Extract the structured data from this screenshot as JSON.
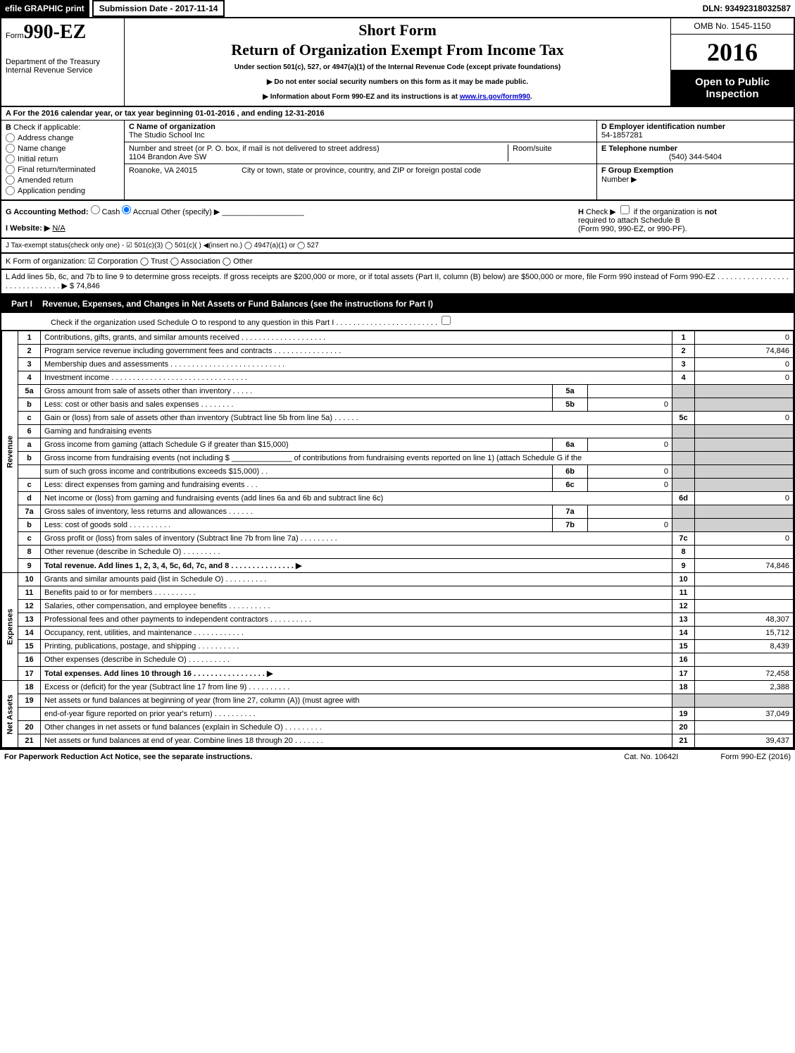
{
  "topbar": {
    "efile": "efile GRAPHIC print",
    "submission": "Submission Date - 2017-11-14",
    "dln": "DLN: 93492318032587"
  },
  "header": {
    "form_prefix": "Form",
    "form_number": "990-EZ",
    "dept1": "Department of the Treasury",
    "dept2": "Internal Revenue Service",
    "short_form": "Short Form",
    "title": "Return of Organization Exempt From Income Tax",
    "under_section": "Under section 501(c), 527, or 4947(a)(1) of the Internal Revenue Code (except private foundations)",
    "arrow1": "▶ Do not enter social security numbers on this form as it may be made public.",
    "arrow2_prefix": "▶ Information about Form 990-EZ and its instructions is at ",
    "arrow2_link": "www.irs.gov/form990",
    "arrow2_suffix": ".",
    "omb": "OMB No. 1545-1150",
    "year": "2016",
    "open_public_1": "Open to Public",
    "open_public_2": "Inspection"
  },
  "section_a": {
    "cal_year_prefix": "A  For the 2016 calendar year, or tax year beginning ",
    "begin_date": "01-01-2016",
    "mid": " , and ending ",
    "end_date": "12-31-2016",
    "b_label": "B",
    "check_if": "Check if applicable:",
    "checks": [
      "Address change",
      "Name change",
      "Initial return",
      "Final return/terminated",
      "Amended return",
      "Application pending"
    ],
    "c_label": "C Name of organization",
    "org_name": "The Studio School Inc",
    "street_label": "Number and street (or P. O. box, if mail is not delivered to street address)",
    "room_label": "Room/suite",
    "street": "1104 Brandon Ave SW",
    "city_label": "City or town, state or province, country, and ZIP or foreign postal code",
    "city": "Roanoke, VA  24015",
    "d_label": "D Employer identification number",
    "ein": "54-1857281",
    "e_label": "E Telephone number",
    "phone": "(540) 344-5404",
    "f_label": "F Group Exemption",
    "f_label2": "Number     ▶"
  },
  "line_g": {
    "g_label": "G Accounting Method:",
    "cash": "Cash",
    "accrual": "Accrual",
    "other": "Other (specify) ▶",
    "h_label": "H",
    "h_text1": "Check ▶",
    "h_text2": "if the organization is",
    "h_not": "not",
    "h_text3": "required to attach Schedule B",
    "h_text4": "(Form 990, 990-EZ, or 990-PF).",
    "i_label": "I Website: ▶",
    "website": "N/A"
  },
  "line_j": "J Tax-exempt status(check only one) -  ☑ 501(c)(3)  ◯ 501(c)(  ) ◀(insert no.)  ◯ 4947(a)(1) or  ◯ 527",
  "line_k": "K Form of organization:   ☑ Corporation   ◯ Trust   ◯ Association   ◯ Other ",
  "line_l": {
    "text": "L Add lines 5b, 6c, and 7b to line 9 to determine gross receipts. If gross receipts are $200,000 or more, or if total assets (Part II, column (B) below) are $500,000 or more, file Form 990 instead of Form 990-EZ  . . . . . . . . . . . . . . . . . . . . . . . . . . . . . .  ▶",
    "amount": "$ 74,846"
  },
  "part1": {
    "label": "Part I",
    "title": "Revenue, Expenses, and Changes in Net Assets or Fund Balances (see the instructions for Part I)",
    "check_o": "Check if the organization used Schedule O to respond to any question in this Part I . . . . . . . . . . . . . . . . . . . . . . . .",
    "side_revenue": "Revenue",
    "side_expenses": "Expenses",
    "side_netassets": "Net Assets",
    "rows": [
      {
        "n": "1",
        "d": "Contributions, gifts, grants, and similar amounts received . . . . . . . . . . . . . . . . . . . .",
        "ln": "1",
        "v": "0"
      },
      {
        "n": "2",
        "d": "Program service revenue including government fees and contracts . . . . . . . . . . . . . . . .",
        "ln": "2",
        "v": "74,846"
      },
      {
        "n": "3",
        "d": "Membership dues and assessments . . . . . . . . . . . . . . . . . . . . . . . . . . .",
        "ln": "3",
        "v": "0"
      },
      {
        "n": "4",
        "d": "Investment income . . . . . . . . . . . . . . . . . . . . . . . . . . . . . . . .",
        "ln": "4",
        "v": "0"
      },
      {
        "n": "5a",
        "d": "Gross amount from sale of assets other than inventory . . . . .",
        "sub": "5a",
        "sv": ""
      },
      {
        "n": "b",
        "d": "Less: cost or other basis and sales expenses . . . . . . . .",
        "sub": "5b",
        "sv": "0"
      },
      {
        "n": "c",
        "d": "Gain or (loss) from sale of assets other than inventory (Subtract line 5b from line 5a)       .   .   .   .   .   .",
        "ln": "5c",
        "v": "0"
      },
      {
        "n": "6",
        "d": "Gaming and fundraising events"
      },
      {
        "n": "a",
        "d": "Gross income from gaming (attach Schedule G if greater than $15,000)",
        "sub": "6a",
        "sv": "0"
      },
      {
        "n": "b",
        "d": "Gross income from fundraising events (not including $ ______________ of contributions from fundraising events reported on line 1) (attach Schedule G if the"
      },
      {
        "n": "",
        "d": "sum of such gross income and contributions exceeds $15,000)       .   .",
        "sub": "6b",
        "sv": "0"
      },
      {
        "n": "c",
        "d": "Less: direct expenses from gaming and fundraising events       .   .   .",
        "sub": "6c",
        "sv": "0"
      },
      {
        "n": "d",
        "d": "Net income or (loss) from gaming and fundraising events (add lines 6a and 6b and subtract line 6c)",
        "ln": "6d",
        "v": "0"
      },
      {
        "n": "7a",
        "d": "Gross sales of inventory, less returns and allowances       .   .   .   .   .   .",
        "sub": "7a",
        "sv": ""
      },
      {
        "n": "b",
        "d": "Less: cost of goods sold              .   .   .   .   .   .   .   .   .   .",
        "sub": "7b",
        "sv": "0"
      },
      {
        "n": "c",
        "d": "Gross profit or (loss) from sales of inventory (Subtract line 7b from line 7a)       .   .   .   .   .   .   .   .   .",
        "ln": "7c",
        "v": "0"
      },
      {
        "n": "8",
        "d": "Other revenue (describe in Schedule O)       .   .   .   .   .   .   .   .   .",
        "ln": "8",
        "v": ""
      },
      {
        "n": "9",
        "d": "Total revenue. Add lines 1, 2, 3, 4, 5c, 6d, 7c, and 8    .   .   .   .   .   .   .   .   .   .   .   .   .   .   .  ▶",
        "ln": "9",
        "v": "74,846",
        "bold": true
      },
      {
        "n": "10",
        "d": "Grants and similar amounts paid (list in Schedule O)       .   .   .   .   .   .   .   .   .   .",
        "ln": "10",
        "v": ""
      },
      {
        "n": "11",
        "d": "Benefits paid to or for members       .   .   .   .   .   .   .   .   .   .",
        "ln": "11",
        "v": ""
      },
      {
        "n": "12",
        "d": "Salaries, other compensation, and employee benefits       .   .   .   .   .   .   .   .   .   .",
        "ln": "12",
        "v": ""
      },
      {
        "n": "13",
        "d": "Professional fees and other payments to independent contractors       .   .   .   .   .   .   .   .   .   .",
        "ln": "13",
        "v": "48,307"
      },
      {
        "n": "14",
        "d": "Occupancy, rent, utilities, and maintenance       .   .   .   .   .   .   .   .   .   .   .   .",
        "ln": "14",
        "v": "15,712"
      },
      {
        "n": "15",
        "d": "Printing, publications, postage, and shipping       .   .   .   .   .   .   .   .   .   .",
        "ln": "15",
        "v": "8,439"
      },
      {
        "n": "16",
        "d": "Other expenses (describe in Schedule O)       .   .   .   .   .   .   .   .   .   .",
        "ln": "16",
        "v": ""
      },
      {
        "n": "17",
        "d": "Total expenses. Add lines 10 through 16    .   .   .   .   .   .   .   .   .   .   .   .   .   .   .   .   .  ▶",
        "ln": "17",
        "v": "72,458",
        "bold": true
      },
      {
        "n": "18",
        "d": "Excess or (deficit) for the year (Subtract line 17 from line 9)       .   .   .   .   .   .   .   .   .   .",
        "ln": "18",
        "v": "2,388"
      },
      {
        "n": "19",
        "d": "Net assets or fund balances at beginning of year (from line 27, column (A)) (must agree with"
      },
      {
        "n": "",
        "d": "end-of-year figure reported on prior year's return)       .   .   .   .   .   .   .   .   .   .",
        "ln": "19",
        "v": "37,049"
      },
      {
        "n": "20",
        "d": "Other changes in net assets or fund balances (explain in Schedule O)       .   .   .   .   .   .   .   .   .",
        "ln": "20",
        "v": ""
      },
      {
        "n": "21",
        "d": "Net assets or fund balances at end of year. Combine lines 18 through 20       .   .   .   .   .   .   .",
        "ln": "21",
        "v": "39,437"
      }
    ]
  },
  "footer": {
    "left": "For Paperwork Reduction Act Notice, see the separate instructions.",
    "cat": "Cat. No. 10642I",
    "right": "Form 990-EZ (2016)"
  }
}
